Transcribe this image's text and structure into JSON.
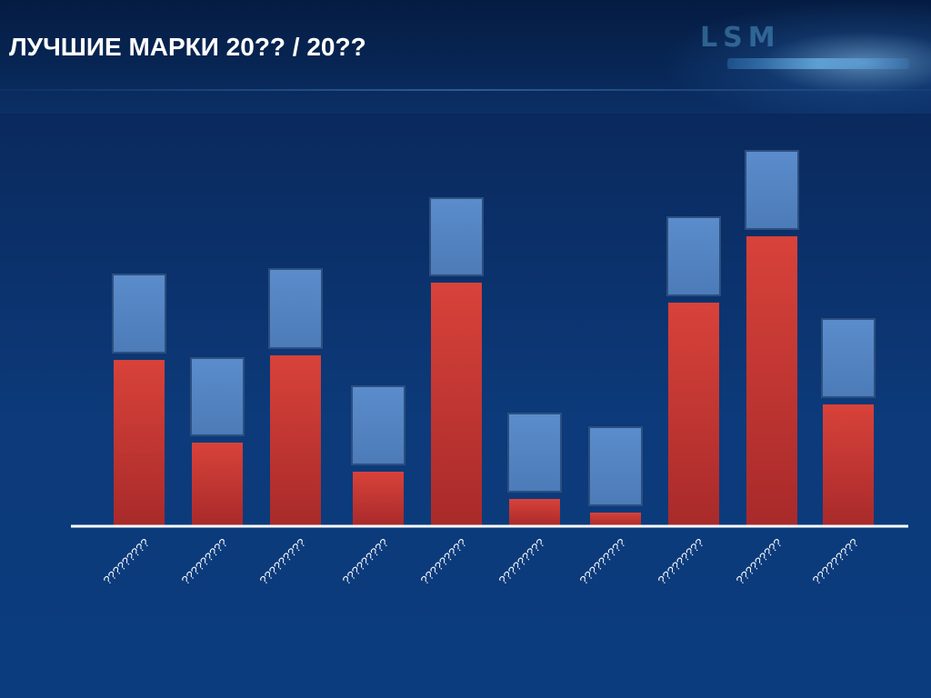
{
  "page": {
    "title": "ЛУЧШИЕ МАРКИ 20?? / 20??"
  },
  "colors": {
    "red_series": "#d03c36",
    "blue_series": "#5585c0",
    "axis": "#ffffff",
    "label": "#ffffff"
  },
  "chart_data": {
    "type": "bar",
    "stacked": true,
    "title": "ЛУЧШИЕ МАРКИ 20?? / 20??",
    "categories": [
      "?????????",
      "?????????",
      "?????????",
      "?????????",
      "?????????",
      "?????????",
      "?????????",
      "?????????",
      "?????????",
      "?????????"
    ],
    "series": [
      {
        "values": [
          183,
          92,
          188,
          60,
          268,
          30,
          15,
          246,
          319,
          134
        ]
      },
      {
        "values": [
          86,
          85,
          87,
          86,
          85,
          86,
          86,
          86,
          86,
          86
        ]
      }
    ],
    "ylim": [
      0,
      420
    ],
    "grid": false,
    "legend": "none"
  }
}
